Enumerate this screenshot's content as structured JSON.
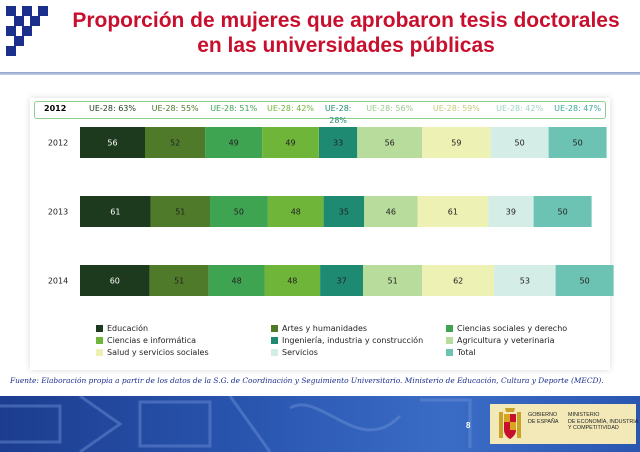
{
  "title": "Proporción de mujeres que aprobaron tesis doctorales en las universidades públicas",
  "ue_year": "2012",
  "ue_values": [
    "UE-28: 63%",
    "UE-28: 55%",
    "UE-28: 51%",
    "UE-28: 42%",
    "UE-28: 28%",
    "UE-28: 56%",
    "UE-28: 59%",
    "UE-28: 42%",
    "UE-28: 47%"
  ],
  "colors": {
    "title": "#c8102e",
    "educacion": "#1e3a1e",
    "artes": "#4f7a2a",
    "ciencias_sociales": "#3fa452",
    "ciencias_info": "#6fb53a",
    "ingenieria": "#1e8a72",
    "agricultura": "#b8dc9c",
    "salud": "#eef1b4",
    "servicios": "#d4ede6",
    "total": "#6cc3b3"
  },
  "chart_data": {
    "type": "bar",
    "orientation": "horizontal-stacked",
    "categories": [
      "2012",
      "2013",
      "2014"
    ],
    "series": [
      {
        "name": "Educación",
        "values": [
          56,
          61,
          60
        ],
        "color": "#1e3a1e"
      },
      {
        "name": "Artes y humanidades",
        "values": [
          52,
          51,
          51
        ],
        "color": "#4f7a2a"
      },
      {
        "name": "Ciencias sociales y derecho",
        "values": [
          49,
          50,
          48
        ],
        "color": "#3fa452"
      },
      {
        "name": "Ciencias e informática",
        "values": [
          49,
          48,
          48
        ],
        "color": "#6fb53a"
      },
      {
        "name": "Ingeniería, industria y construcción",
        "values": [
          33,
          35,
          37
        ],
        "color": "#1e8a72"
      },
      {
        "name": "Agricultura y veterinaria",
        "values": [
          56,
          46,
          51
        ],
        "color": "#b8dc9c"
      },
      {
        "name": "Salud y servicios sociales",
        "values": [
          59,
          61,
          62
        ],
        "color": "#eef1b4"
      },
      {
        "name": "Servicios",
        "values": [
          50,
          39,
          53
        ],
        "color": "#d4ede6"
      },
      {
        "name": "Total",
        "values": [
          50,
          50,
          50
        ],
        "color": "#6cc3b3"
      }
    ],
    "legend": "bottom"
  },
  "source": "Fuente: Elaboración propia a partir de los datos de la S.G. de Coordinación y Seguimiento Universitario. Ministerio de Educación, Cultura y Deporte (MECD).",
  "page_number": "8",
  "gov_left": [
    "GOBIERNO",
    "DE ESPAÑA"
  ],
  "gov_right": [
    "MINISTERIO",
    "DE ECONOMÍA, INDUSTRIA",
    "Y COMPETITIVIDAD"
  ]
}
